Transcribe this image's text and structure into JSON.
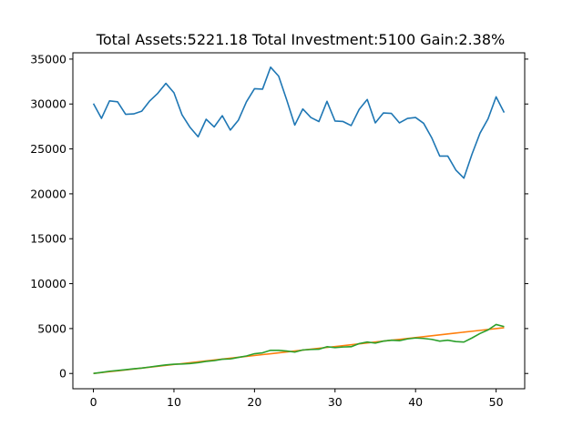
{
  "chart_data": {
    "type": "line",
    "title": "Total Assets:5221.18  Total Investment:5100  Gain:2.38%",
    "xlabel": "",
    "ylabel": "",
    "xlim": [
      -2.55,
      53.55
    ],
    "ylim": [
      -1700,
      35700
    ],
    "x_ticks": [
      0,
      10,
      20,
      30,
      40,
      50
    ],
    "y_ticks": [
      0,
      5000,
      10000,
      15000,
      20000,
      25000,
      30000,
      35000
    ],
    "grid": false,
    "legend": "none",
    "x": [
      0,
      1,
      2,
      3,
      4,
      5,
      6,
      7,
      8,
      9,
      10,
      11,
      12,
      13,
      14,
      15,
      16,
      17,
      18,
      19,
      20,
      21,
      22,
      23,
      24,
      25,
      26,
      27,
      28,
      29,
      30,
      31,
      32,
      33,
      34,
      35,
      36,
      37,
      38,
      39,
      40,
      41,
      42,
      43,
      44,
      45,
      46,
      47,
      48,
      49,
      50,
      51
    ],
    "series": [
      {
        "color": "#1f77b4",
        "values": [
          30050,
          28400,
          30350,
          30250,
          28850,
          28900,
          29200,
          30350,
          31200,
          32300,
          31250,
          28800,
          27400,
          26350,
          28300,
          27450,
          28700,
          27100,
          28200,
          30250,
          31700,
          31650,
          34100,
          33100,
          30450,
          27650,
          29450,
          28500,
          28050,
          30300,
          28100,
          28050,
          27600,
          29400,
          30500,
          27900,
          29000,
          28950,
          27900,
          28400,
          28500,
          27850,
          26250,
          24200,
          24200,
          22650,
          21750,
          24400,
          26750,
          28350,
          30800,
          29050
        ]
      },
      {
        "color": "#ff7f0e",
        "values": [
          0,
          100,
          200,
          300,
          400,
          500,
          600,
          700,
          800,
          900,
          1000,
          1100,
          1200,
          1300,
          1400,
          1500,
          1600,
          1700,
          1800,
          1900,
          2000,
          2100,
          2200,
          2300,
          2400,
          2500,
          2600,
          2700,
          2800,
          2900,
          3000,
          3100,
          3200,
          3300,
          3400,
          3500,
          3600,
          3700,
          3800,
          3900,
          4000,
          4100,
          4200,
          4300,
          4400,
          4500,
          4600,
          4700,
          4800,
          4900,
          5000,
          5100
        ]
      },
      {
        "color": "#2ca02c",
        "values": [
          0,
          120,
          250,
          330,
          420,
          520,
          600,
          720,
          840,
          950,
          1030,
          1060,
          1110,
          1200,
          1350,
          1430,
          1590,
          1620,
          1790,
          1950,
          2200,
          2300,
          2580,
          2580,
          2500,
          2380,
          2620,
          2670,
          2700,
          2980,
          2880,
          2950,
          2980,
          3330,
          3500,
          3380,
          3600,
          3700,
          3650,
          3850,
          3950,
          3900,
          3800,
          3600,
          3700,
          3550,
          3500,
          3950,
          4450,
          4850,
          5450,
          5221
        ]
      }
    ]
  }
}
